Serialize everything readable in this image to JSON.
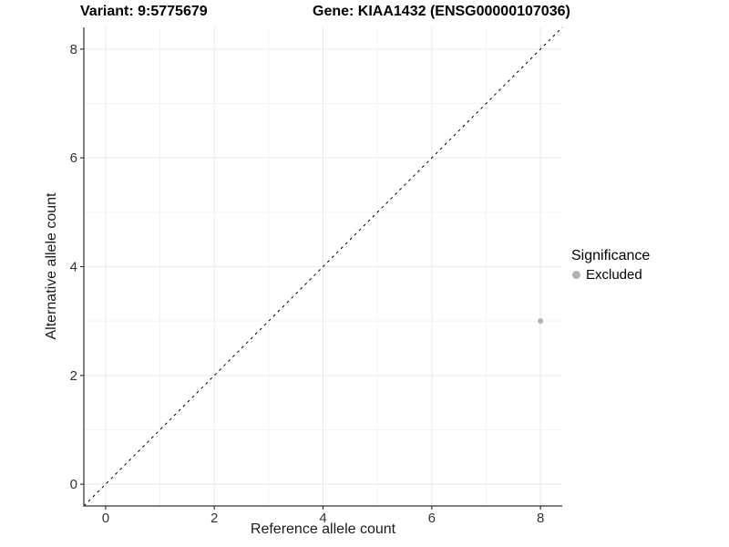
{
  "chart_data": {
    "type": "scatter",
    "title_left": "Variant: 9:5775679",
    "title_right": "Gene: KIAA1432 (ENSG00000107036)",
    "xlabel": "Reference allele count",
    "ylabel": "Alternative allele count",
    "xlim": [
      -0.4,
      8.4
    ],
    "ylim": [
      -0.4,
      8.4
    ],
    "x_ticks": [
      0,
      2,
      4,
      6,
      8
    ],
    "y_ticks": [
      0,
      2,
      4,
      6,
      8
    ],
    "x_minor_ticks": [
      1,
      3,
      5,
      7
    ],
    "y_minor_ticks": [
      1,
      3,
      5,
      7
    ],
    "grid": "on",
    "reference_line": {
      "kind": "identity y=x",
      "style": "dashed",
      "color": "#000000"
    },
    "series": [
      {
        "name": "Excluded",
        "color": "#b2b2b2",
        "points": [
          {
            "x": 8,
            "y": 3
          }
        ]
      }
    ],
    "legend": {
      "title": "Significance",
      "position": "right",
      "items": [
        {
          "label": "Excluded",
          "color": "#b2b2b2"
        }
      ]
    },
    "colors": {
      "grid_major": "#e9e9e9",
      "grid_minor": "#f3f3f3",
      "axis": "#333333",
      "tick_text": "#333333"
    }
  }
}
